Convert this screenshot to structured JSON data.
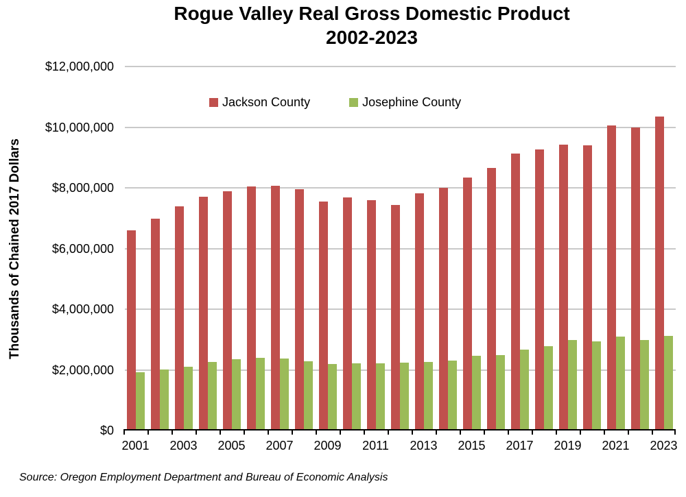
{
  "title": {
    "line1": "Rogue Valley Real Gross Domestic Product",
    "line2": "2002-2023"
  },
  "y_axis": {
    "title": "Thousands of Chained 2017 Dollars",
    "tick_labels": [
      "$12,000,000",
      "$10,000,000",
      "$8,000,000",
      "$6,000,000",
      "$4,000,000",
      "$2,000,000",
      "$0"
    ]
  },
  "x_axis": {
    "tick_labels": [
      "2001",
      "2003",
      "2005",
      "2007",
      "2009",
      "2011",
      "2013",
      "2015",
      "2017",
      "2019",
      "2021",
      "2023"
    ]
  },
  "legend": [
    {
      "label": "Jackson County",
      "color": "#c0504d"
    },
    {
      "label": "Josephine County",
      "color": "#9bbb59"
    }
  ],
  "source": "Source: Oregon Employment Department and Bureau of Economic Analysis",
  "colors": {
    "jackson": "#c0504d",
    "josephine": "#9bbb59",
    "gridline": "#c9c9c9",
    "axis": "#000000"
  },
  "chart_data": {
    "type": "bar",
    "title": "Rogue Valley Real Gross Domestic Product 2002-2023",
    "xlabel": "",
    "ylabel": "Thousands of Chained 2017 Dollars",
    "ylim": [
      0,
      12000000
    ],
    "y_tick_step": 2000000,
    "grid": "horizontal",
    "legend_position": "top-center-inside",
    "categories": [
      2001,
      2002,
      2003,
      2004,
      2005,
      2006,
      2007,
      2008,
      2009,
      2010,
      2011,
      2012,
      2013,
      2014,
      2015,
      2016,
      2017,
      2018,
      2019,
      2020,
      2021,
      2022,
      2023
    ],
    "series": [
      {
        "name": "Jackson County",
        "color": "#c0504d",
        "values": [
          6560000,
          6930000,
          7350000,
          7670000,
          7850000,
          8000000,
          8030000,
          7910000,
          7500000,
          7650000,
          7550000,
          7400000,
          7780000,
          7950000,
          8290000,
          8620000,
          9080000,
          9230000,
          9380000,
          9360000,
          10020000,
          9950000,
          10300000
        ]
      },
      {
        "name": "Josephine County",
        "color": "#9bbb59",
        "values": [
          1870000,
          1960000,
          2060000,
          2210000,
          2300000,
          2340000,
          2320000,
          2230000,
          2150000,
          2170000,
          2160000,
          2190000,
          2210000,
          2260000,
          2420000,
          2440000,
          2630000,
          2730000,
          2940000,
          2890000,
          3060000,
          2930000,
          3080000
        ]
      }
    ]
  }
}
